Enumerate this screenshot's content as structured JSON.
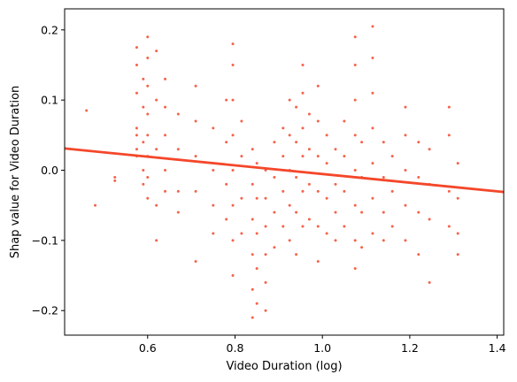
{
  "chart_data": {
    "type": "scatter",
    "title": "",
    "xlabel": "Video Duration (log)",
    "ylabel": "Shap value for Video Duration",
    "xlim": [
      0.41,
      1.415
    ],
    "ylim": [
      -0.235,
      0.23
    ],
    "x_scale": "linear",
    "grid": false,
    "legend": "none",
    "x_ticks": [
      {
        "value": 0.6,
        "label": "0.6"
      },
      {
        "value": 0.8,
        "label": "0.8"
      },
      {
        "value": 1.0,
        "label": "1.0"
      },
      {
        "value": 1.2,
        "label": "1.2"
      },
      {
        "value": 1.4,
        "label": "1.4"
      }
    ],
    "y_ticks": [
      {
        "value": 0.2,
        "label": "0.2"
      },
      {
        "value": 0.1,
        "label": "0.1"
      },
      {
        "value": 0.0,
        "label": "0.0"
      },
      {
        "value": -0.1,
        "label": "−0.1"
      },
      {
        "value": -0.2,
        "label": "−0.2"
      }
    ],
    "color": "#f4472a",
    "trend_line": {
      "x": [
        0.41,
        1.415
      ],
      "y": [
        0.031,
        -0.031
      ]
    },
    "series": [
      {
        "values": [
          [
            0.46,
            0.085
          ],
          [
            0.48,
            -0.05
          ],
          [
            0.525,
            -0.01
          ],
          [
            0.525,
            -0.015
          ],
          [
            0.575,
            0.175
          ],
          [
            0.575,
            0.15
          ],
          [
            0.575,
            0.11
          ],
          [
            0.575,
            0.06
          ],
          [
            0.575,
            0.05
          ],
          [
            0.575,
            0.03
          ],
          [
            0.575,
            0.02
          ],
          [
            0.59,
            0.13
          ],
          [
            0.59,
            0.09
          ],
          [
            0.59,
            0.04
          ],
          [
            0.59,
            0.0
          ],
          [
            0.59,
            -0.02
          ],
          [
            0.6,
            0.19
          ],
          [
            0.6,
            0.16
          ],
          [
            0.6,
            0.12
          ],
          [
            0.6,
            0.08
          ],
          [
            0.6,
            0.05
          ],
          [
            0.6,
            0.02
          ],
          [
            0.6,
            -0.01
          ],
          [
            0.6,
            -0.04
          ],
          [
            0.62,
            0.17
          ],
          [
            0.62,
            0.1
          ],
          [
            0.62,
            0.03
          ],
          [
            0.62,
            -0.05
          ],
          [
            0.62,
            -0.1
          ],
          [
            0.64,
            0.13
          ],
          [
            0.64,
            0.09
          ],
          [
            0.64,
            0.05
          ],
          [
            0.64,
            0.0
          ],
          [
            0.64,
            -0.03
          ],
          [
            0.67,
            0.08
          ],
          [
            0.67,
            0.03
          ],
          [
            0.67,
            -0.03
          ],
          [
            0.67,
            -0.06
          ],
          [
            0.71,
            0.12
          ],
          [
            0.71,
            0.07
          ],
          [
            0.71,
            0.02
          ],
          [
            0.71,
            -0.03
          ],
          [
            0.71,
            -0.13
          ],
          [
            0.75,
            0.06
          ],
          [
            0.75,
            0.0
          ],
          [
            0.75,
            -0.05
          ],
          [
            0.75,
            -0.09
          ],
          [
            0.78,
            0.1
          ],
          [
            0.78,
            0.04
          ],
          [
            0.78,
            -0.02
          ],
          [
            0.78,
            -0.07
          ],
          [
            0.795,
            0.18
          ],
          [
            0.795,
            0.15
          ],
          [
            0.795,
            0.1
          ],
          [
            0.795,
            0.05
          ],
          [
            0.795,
            0.0
          ],
          [
            0.795,
            -0.05
          ],
          [
            0.795,
            -0.1
          ],
          [
            0.795,
            -0.15
          ],
          [
            0.815,
            0.07
          ],
          [
            0.815,
            0.02
          ],
          [
            0.815,
            -0.04
          ],
          [
            0.815,
            -0.09
          ],
          [
            0.84,
            0.03
          ],
          [
            0.84,
            -0.02
          ],
          [
            0.84,
            -0.07
          ],
          [
            0.84,
            -0.12
          ],
          [
            0.84,
            -0.17
          ],
          [
            0.84,
            -0.21
          ],
          [
            0.85,
            0.01
          ],
          [
            0.85,
            -0.04
          ],
          [
            0.85,
            -0.09
          ],
          [
            0.85,
            -0.14
          ],
          [
            0.85,
            -0.19
          ],
          [
            0.87,
            0.0
          ],
          [
            0.87,
            -0.04
          ],
          [
            0.87,
            -0.08
          ],
          [
            0.87,
            -0.12
          ],
          [
            0.87,
            -0.16
          ],
          [
            0.87,
            -0.2
          ],
          [
            0.89,
            0.04
          ],
          [
            0.89,
            -0.01
          ],
          [
            0.89,
            -0.06
          ],
          [
            0.89,
            -0.11
          ],
          [
            0.91,
            0.06
          ],
          [
            0.91,
            0.02
          ],
          [
            0.91,
            -0.03
          ],
          [
            0.91,
            -0.08
          ],
          [
            0.925,
            0.1
          ],
          [
            0.925,
            0.05
          ],
          [
            0.925,
            0.0
          ],
          [
            0.925,
            -0.05
          ],
          [
            0.925,
            -0.1
          ],
          [
            0.94,
            0.09
          ],
          [
            0.94,
            0.04
          ],
          [
            0.94,
            -0.01
          ],
          [
            0.94,
            -0.06
          ],
          [
            0.94,
            -0.12
          ],
          [
            0.955,
            0.15
          ],
          [
            0.955,
            0.11
          ],
          [
            0.955,
            0.06
          ],
          [
            0.955,
            0.02
          ],
          [
            0.955,
            -0.03
          ],
          [
            0.955,
            -0.08
          ],
          [
            0.97,
            0.08
          ],
          [
            0.97,
            0.03
          ],
          [
            0.97,
            -0.02
          ],
          [
            0.97,
            -0.07
          ],
          [
            0.99,
            0.12
          ],
          [
            0.99,
            0.07
          ],
          [
            0.99,
            0.02
          ],
          [
            0.99,
            -0.03
          ],
          [
            0.99,
            -0.08
          ],
          [
            0.99,
            -0.13
          ],
          [
            1.01,
            0.05
          ],
          [
            1.01,
            0.01
          ],
          [
            1.01,
            -0.04
          ],
          [
            1.01,
            -0.09
          ],
          [
            1.03,
            0.03
          ],
          [
            1.03,
            -0.02
          ],
          [
            1.03,
            -0.06
          ],
          [
            1.03,
            -0.1
          ],
          [
            1.05,
            0.07
          ],
          [
            1.05,
            0.02
          ],
          [
            1.05,
            -0.03
          ],
          [
            1.05,
            -0.08
          ],
          [
            1.075,
            0.19
          ],
          [
            1.075,
            0.15
          ],
          [
            1.075,
            0.1
          ],
          [
            1.075,
            0.05
          ],
          [
            1.075,
            0.0
          ],
          [
            1.075,
            -0.05
          ],
          [
            1.075,
            -0.1
          ],
          [
            1.075,
            -0.14
          ],
          [
            1.09,
            0.04
          ],
          [
            1.09,
            -0.01
          ],
          [
            1.09,
            -0.06
          ],
          [
            1.09,
            -0.11
          ],
          [
            1.115,
            0.205
          ],
          [
            1.115,
            0.16
          ],
          [
            1.115,
            0.11
          ],
          [
            1.115,
            0.06
          ],
          [
            1.115,
            0.01
          ],
          [
            1.115,
            -0.04
          ],
          [
            1.115,
            -0.09
          ],
          [
            1.14,
            0.04
          ],
          [
            1.14,
            -0.01
          ],
          [
            1.14,
            -0.06
          ],
          [
            1.14,
            -0.1
          ],
          [
            1.16,
            0.02
          ],
          [
            1.16,
            -0.03
          ],
          [
            1.16,
            -0.08
          ],
          [
            1.19,
            0.09
          ],
          [
            1.19,
            0.05
          ],
          [
            1.19,
            0.0
          ],
          [
            1.19,
            -0.05
          ],
          [
            1.19,
            -0.1
          ],
          [
            1.22,
            0.04
          ],
          [
            1.22,
            -0.01
          ],
          [
            1.22,
            -0.06
          ],
          [
            1.22,
            -0.12
          ],
          [
            1.245,
            0.03
          ],
          [
            1.245,
            -0.02
          ],
          [
            1.245,
            -0.07
          ],
          [
            1.245,
            -0.16
          ],
          [
            1.29,
            0.09
          ],
          [
            1.29,
            0.05
          ],
          [
            1.29,
            -0.03
          ],
          [
            1.29,
            -0.08
          ],
          [
            1.31,
            0.01
          ],
          [
            1.31,
            -0.04
          ],
          [
            1.31,
            -0.09
          ],
          [
            1.31,
            -0.12
          ]
        ]
      }
    ]
  }
}
